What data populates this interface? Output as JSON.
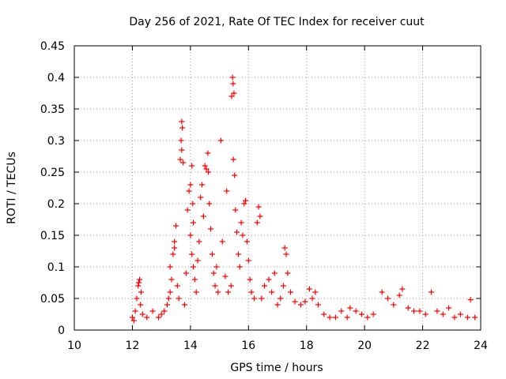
{
  "chart_data": {
    "type": "scatter",
    "title": "Day 256 of 2021, Rate Of TEC Index for receiver cuut",
    "xlabel": "GPS time / hours",
    "ylabel": "ROTI / TECUs",
    "xlim": [
      10,
      24
    ],
    "ylim": [
      0,
      0.45
    ],
    "xticks": [
      10,
      12,
      14,
      16,
      18,
      20,
      22,
      24
    ],
    "xtick_labels": [
      "10",
      "12",
      "14",
      "16",
      "18",
      "20",
      "22",
      "24"
    ],
    "yticks": [
      0,
      0.05,
      0.1,
      0.15,
      0.2,
      0.25,
      0.3,
      0.35,
      0.4,
      0.45
    ],
    "ytick_labels": [
      "0",
      "0.05",
      "0.1",
      "0.15",
      "0.2",
      "0.25",
      "0.3",
      "0.35",
      "0.4",
      "0.45"
    ],
    "grid": true,
    "legend": "none",
    "marker": "plus",
    "color": "#ff0000",
    "series": [
      {
        "points": [
          [
            12.0,
            0.02
          ],
          [
            12.05,
            0.015
          ],
          [
            12.1,
            0.03
          ],
          [
            12.15,
            0.05
          ],
          [
            12.2,
            0.07
          ],
          [
            12.25,
            0.08
          ],
          [
            12.3,
            0.06
          ],
          [
            12.22,
            0.075
          ],
          [
            12.28,
            0.04
          ],
          [
            12.35,
            0.025
          ],
          [
            12.5,
            0.02
          ],
          [
            12.7,
            0.03
          ],
          [
            12.9,
            0.02
          ],
          [
            13.0,
            0.025
          ],
          [
            13.1,
            0.03
          ],
          [
            13.2,
            0.04
          ],
          [
            13.25,
            0.05
          ],
          [
            13.3,
            0.06
          ],
          [
            13.35,
            0.08
          ],
          [
            13.3,
            0.1
          ],
          [
            13.4,
            0.12
          ],
          [
            13.45,
            0.14
          ],
          [
            13.5,
            0.165
          ],
          [
            13.45,
            0.13
          ],
          [
            13.55,
            0.07
          ],
          [
            13.6,
            0.05
          ],
          [
            13.65,
            0.27
          ],
          [
            13.68,
            0.3
          ],
          [
            13.7,
            0.33
          ],
          [
            13.72,
            0.32
          ],
          [
            13.7,
            0.285
          ],
          [
            13.75,
            0.265
          ],
          [
            13.8,
            0.04
          ],
          [
            13.85,
            0.09
          ],
          [
            13.9,
            0.19
          ],
          [
            13.95,
            0.22
          ],
          [
            14.0,
            0.23
          ],
          [
            14.05,
            0.26
          ],
          [
            14.08,
            0.2
          ],
          [
            14.1,
            0.17
          ],
          [
            14.0,
            0.15
          ],
          [
            14.05,
            0.12
          ],
          [
            14.1,
            0.1
          ],
          [
            14.15,
            0.08
          ],
          [
            14.2,
            0.06
          ],
          [
            14.25,
            0.11
          ],
          [
            14.3,
            0.14
          ],
          [
            14.35,
            0.21
          ],
          [
            14.4,
            0.23
          ],
          [
            14.45,
            0.18
          ],
          [
            14.5,
            0.26
          ],
          [
            14.55,
            0.255
          ],
          [
            14.6,
            0.28
          ],
          [
            14.62,
            0.25
          ],
          [
            14.65,
            0.2
          ],
          [
            14.7,
            0.16
          ],
          [
            14.75,
            0.12
          ],
          [
            14.8,
            0.09
          ],
          [
            14.85,
            0.07
          ],
          [
            14.9,
            0.1
          ],
          [
            14.95,
            0.06
          ],
          [
            15.05,
            0.3
          ],
          [
            15.1,
            0.14
          ],
          [
            15.2,
            0.085
          ],
          [
            15.25,
            0.22
          ],
          [
            15.3,
            0.06
          ],
          [
            15.4,
            0.07
          ],
          [
            15.42,
            0.37
          ],
          [
            15.45,
            0.4
          ],
          [
            15.47,
            0.39
          ],
          [
            15.5,
            0.375
          ],
          [
            15.48,
            0.27
          ],
          [
            15.52,
            0.245
          ],
          [
            15.55,
            0.19
          ],
          [
            15.6,
            0.155
          ],
          [
            15.65,
            0.12
          ],
          [
            15.7,
            0.1
          ],
          [
            15.75,
            0.17
          ],
          [
            15.8,
            0.15
          ],
          [
            15.85,
            0.2
          ],
          [
            15.9,
            0.205
          ],
          [
            15.95,
            0.14
          ],
          [
            16.0,
            0.11
          ],
          [
            16.05,
            0.08
          ],
          [
            16.1,
            0.06
          ],
          [
            16.2,
            0.05
          ],
          [
            16.3,
            0.17
          ],
          [
            16.35,
            0.195
          ],
          [
            16.4,
            0.18
          ],
          [
            16.45,
            0.05
          ],
          [
            16.55,
            0.07
          ],
          [
            16.7,
            0.08
          ],
          [
            16.8,
            0.06
          ],
          [
            16.9,
            0.09
          ],
          [
            17.0,
            0.04
          ],
          [
            17.1,
            0.05
          ],
          [
            17.2,
            0.07
          ],
          [
            17.25,
            0.13
          ],
          [
            17.3,
            0.12
          ],
          [
            17.35,
            0.09
          ],
          [
            17.45,
            0.06
          ],
          [
            17.6,
            0.045
          ],
          [
            17.8,
            0.04
          ],
          [
            17.95,
            0.045
          ],
          [
            18.1,
            0.065
          ],
          [
            18.2,
            0.05
          ],
          [
            18.3,
            0.06
          ],
          [
            18.4,
            0.04
          ],
          [
            18.6,
            0.025
          ],
          [
            18.8,
            0.02
          ],
          [
            19.0,
            0.02
          ],
          [
            19.2,
            0.03
          ],
          [
            19.4,
            0.02
          ],
          [
            19.5,
            0.035
          ],
          [
            19.7,
            0.03
          ],
          [
            19.9,
            0.025
          ],
          [
            20.1,
            0.02
          ],
          [
            20.3,
            0.025
          ],
          [
            20.6,
            0.06
          ],
          [
            20.8,
            0.05
          ],
          [
            21.0,
            0.04
          ],
          [
            21.2,
            0.055
          ],
          [
            21.3,
            0.065
          ],
          [
            21.5,
            0.035
          ],
          [
            21.7,
            0.03
          ],
          [
            21.9,
            0.03
          ],
          [
            22.1,
            0.025
          ],
          [
            22.3,
            0.06
          ],
          [
            22.5,
            0.03
          ],
          [
            22.7,
            0.025
          ],
          [
            22.9,
            0.035
          ],
          [
            23.1,
            0.02
          ],
          [
            23.3,
            0.025
          ],
          [
            23.55,
            0.02
          ],
          [
            23.65,
            0.048
          ],
          [
            23.8,
            0.02
          ]
        ]
      }
    ]
  }
}
